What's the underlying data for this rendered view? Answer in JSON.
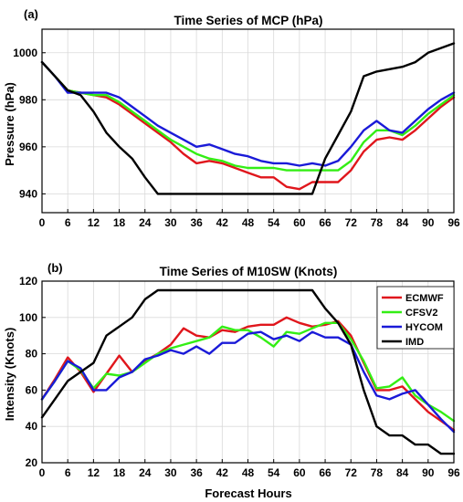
{
  "chart_data": [
    {
      "type": "line",
      "panel_label": "(a)",
      "title": "Time Series of MCP (hPa)",
      "xlabel": "",
      "ylabel": "Pressure (hPa)",
      "xlim": [
        0,
        96
      ],
      "ylim": [
        932,
        1010
      ],
      "xticks": [
        0,
        6,
        12,
        18,
        24,
        30,
        36,
        42,
        48,
        54,
        60,
        66,
        72,
        78,
        84,
        90,
        96
      ],
      "yticks": [
        940,
        960,
        980,
        1000
      ],
      "grid": true,
      "series": [
        {
          "name": "ECMWF",
          "color": "#e0161c",
          "x": [
            0,
            3,
            6,
            9,
            12,
            15,
            18,
            21,
            24,
            27,
            30,
            33,
            36,
            39,
            42,
            45,
            48,
            51,
            54,
            57,
            60,
            63,
            66,
            69,
            72,
            75,
            78,
            81,
            84,
            87,
            90,
            93,
            96
          ],
          "y": [
            996,
            990,
            984,
            983,
            982,
            981,
            978,
            974,
            970,
            966,
            962,
            957,
            953,
            954,
            953,
            951,
            949,
            947,
            947,
            943,
            942,
            945,
            945,
            945,
            950,
            958,
            963,
            964,
            963,
            967,
            972,
            977,
            981
          ]
        },
        {
          "name": "CFSV2",
          "color": "#33ee14",
          "x": [
            0,
            3,
            6,
            9,
            12,
            15,
            18,
            21,
            24,
            27,
            30,
            33,
            36,
            39,
            42,
            45,
            48,
            51,
            54,
            57,
            60,
            63,
            66,
            69,
            72,
            75,
            78,
            81,
            84,
            87,
            90,
            93,
            96
          ],
          "y": [
            996,
            990,
            984,
            983,
            982,
            982,
            979,
            975,
            971,
            967,
            963,
            960,
            957,
            955,
            954,
            952,
            951,
            951,
            951,
            950,
            950,
            950,
            950,
            950,
            954,
            962,
            967,
            967,
            965,
            969,
            974,
            978,
            982
          ]
        },
        {
          "name": "HYCOM",
          "color": "#1a1ad8",
          "x": [
            0,
            3,
            6,
            9,
            12,
            15,
            18,
            21,
            24,
            27,
            30,
            33,
            36,
            39,
            42,
            45,
            48,
            51,
            54,
            57,
            60,
            63,
            66,
            69,
            72,
            75,
            78,
            81,
            84,
            87,
            90,
            93,
            96
          ],
          "y": [
            996,
            990,
            983,
            983,
            983,
            983,
            981,
            977,
            973,
            969,
            966,
            963,
            960,
            961,
            959,
            957,
            956,
            954,
            953,
            953,
            952,
            953,
            952,
            954,
            960,
            967,
            971,
            967,
            966,
            971,
            976,
            980,
            983
          ]
        },
        {
          "name": "IMD",
          "color": "#000000",
          "x": [
            0,
            3,
            6,
            9,
            12,
            15,
            18,
            21,
            24,
            27,
            30,
            36,
            42,
            48,
            54,
            60,
            63,
            66,
            69,
            72,
            75,
            78,
            81,
            84,
            87,
            90,
            93,
            96
          ],
          "y": [
            996,
            990,
            984,
            982,
            975,
            966,
            960,
            955,
            947,
            940,
            940,
            940,
            940,
            940,
            940,
            940,
            940,
            955,
            965,
            975,
            990,
            992,
            993,
            994,
            996,
            1000,
            1002,
            1004
          ]
        }
      ]
    },
    {
      "type": "line",
      "panel_label": "(b)",
      "title": "Time Series of M10SW (Knots)",
      "xlabel": "Forecast Hours",
      "ylabel": "Intensity (Knots)",
      "xlim": [
        0,
        96
      ],
      "ylim": [
        20,
        120
      ],
      "xticks": [
        0,
        6,
        12,
        18,
        24,
        30,
        36,
        42,
        48,
        54,
        60,
        66,
        72,
        78,
        84,
        90,
        96
      ],
      "yticks": [
        20,
        40,
        60,
        80,
        100,
        120
      ],
      "grid": true,
      "legend": "top-right",
      "series": [
        {
          "name": "ECMWF",
          "color": "#e0161c",
          "x": [
            0,
            3,
            6,
            9,
            12,
            15,
            18,
            21,
            24,
            27,
            30,
            33,
            36,
            39,
            42,
            45,
            48,
            51,
            54,
            57,
            60,
            63,
            66,
            69,
            72,
            75,
            78,
            81,
            84,
            87,
            90,
            93,
            96
          ],
          "y": [
            55,
            66,
            78,
            70,
            59,
            69,
            79,
            70,
            76,
            80,
            85,
            94,
            90,
            89,
            93,
            92,
            95,
            96,
            96,
            100,
            97,
            95,
            96,
            98,
            90,
            75,
            60,
            60,
            62,
            55,
            48,
            43,
            38
          ]
        },
        {
          "name": "CFSV2",
          "color": "#33ee14",
          "x": [
            0,
            3,
            6,
            9,
            12,
            15,
            18,
            21,
            24,
            27,
            30,
            33,
            36,
            39,
            42,
            45,
            48,
            51,
            54,
            57,
            60,
            63,
            66,
            69,
            72,
            75,
            78,
            81,
            84,
            87,
            90,
            93,
            96
          ],
          "y": [
            55,
            65,
            76,
            71,
            61,
            69,
            68,
            70,
            75,
            80,
            83,
            85,
            87,
            89,
            95,
            93,
            93,
            89,
            84,
            92,
            91,
            94,
            97,
            97,
            88,
            76,
            61,
            62,
            67,
            57,
            52,
            48,
            43
          ]
        },
        {
          "name": "HYCOM",
          "color": "#1a1ad8",
          "x": [
            0,
            3,
            6,
            9,
            12,
            15,
            18,
            21,
            24,
            27,
            30,
            33,
            36,
            39,
            42,
            45,
            48,
            51,
            54,
            57,
            60,
            63,
            66,
            69,
            72,
            75,
            78,
            81,
            84,
            87,
            90,
            93,
            96
          ],
          "y": [
            55,
            65,
            76,
            72,
            60,
            60,
            67,
            70,
            77,
            79,
            82,
            80,
            84,
            80,
            86,
            86,
            91,
            92,
            88,
            90,
            87,
            92,
            89,
            89,
            85,
            70,
            57,
            55,
            58,
            60,
            52,
            44,
            37
          ]
        },
        {
          "name": "IMD",
          "color": "#000000",
          "x": [
            0,
            3,
            6,
            9,
            12,
            15,
            18,
            21,
            24,
            27,
            30,
            36,
            42,
            48,
            54,
            60,
            63,
            66,
            69,
            72,
            75,
            78,
            81,
            84,
            87,
            90,
            93,
            96
          ],
          "y": [
            45,
            55,
            65,
            70,
            75,
            90,
            95,
            100,
            110,
            115,
            115,
            115,
            115,
            115,
            115,
            115,
            115,
            105,
            97,
            85,
            60,
            40,
            35,
            35,
            30,
            30,
            25,
            25
          ]
        }
      ]
    }
  ]
}
